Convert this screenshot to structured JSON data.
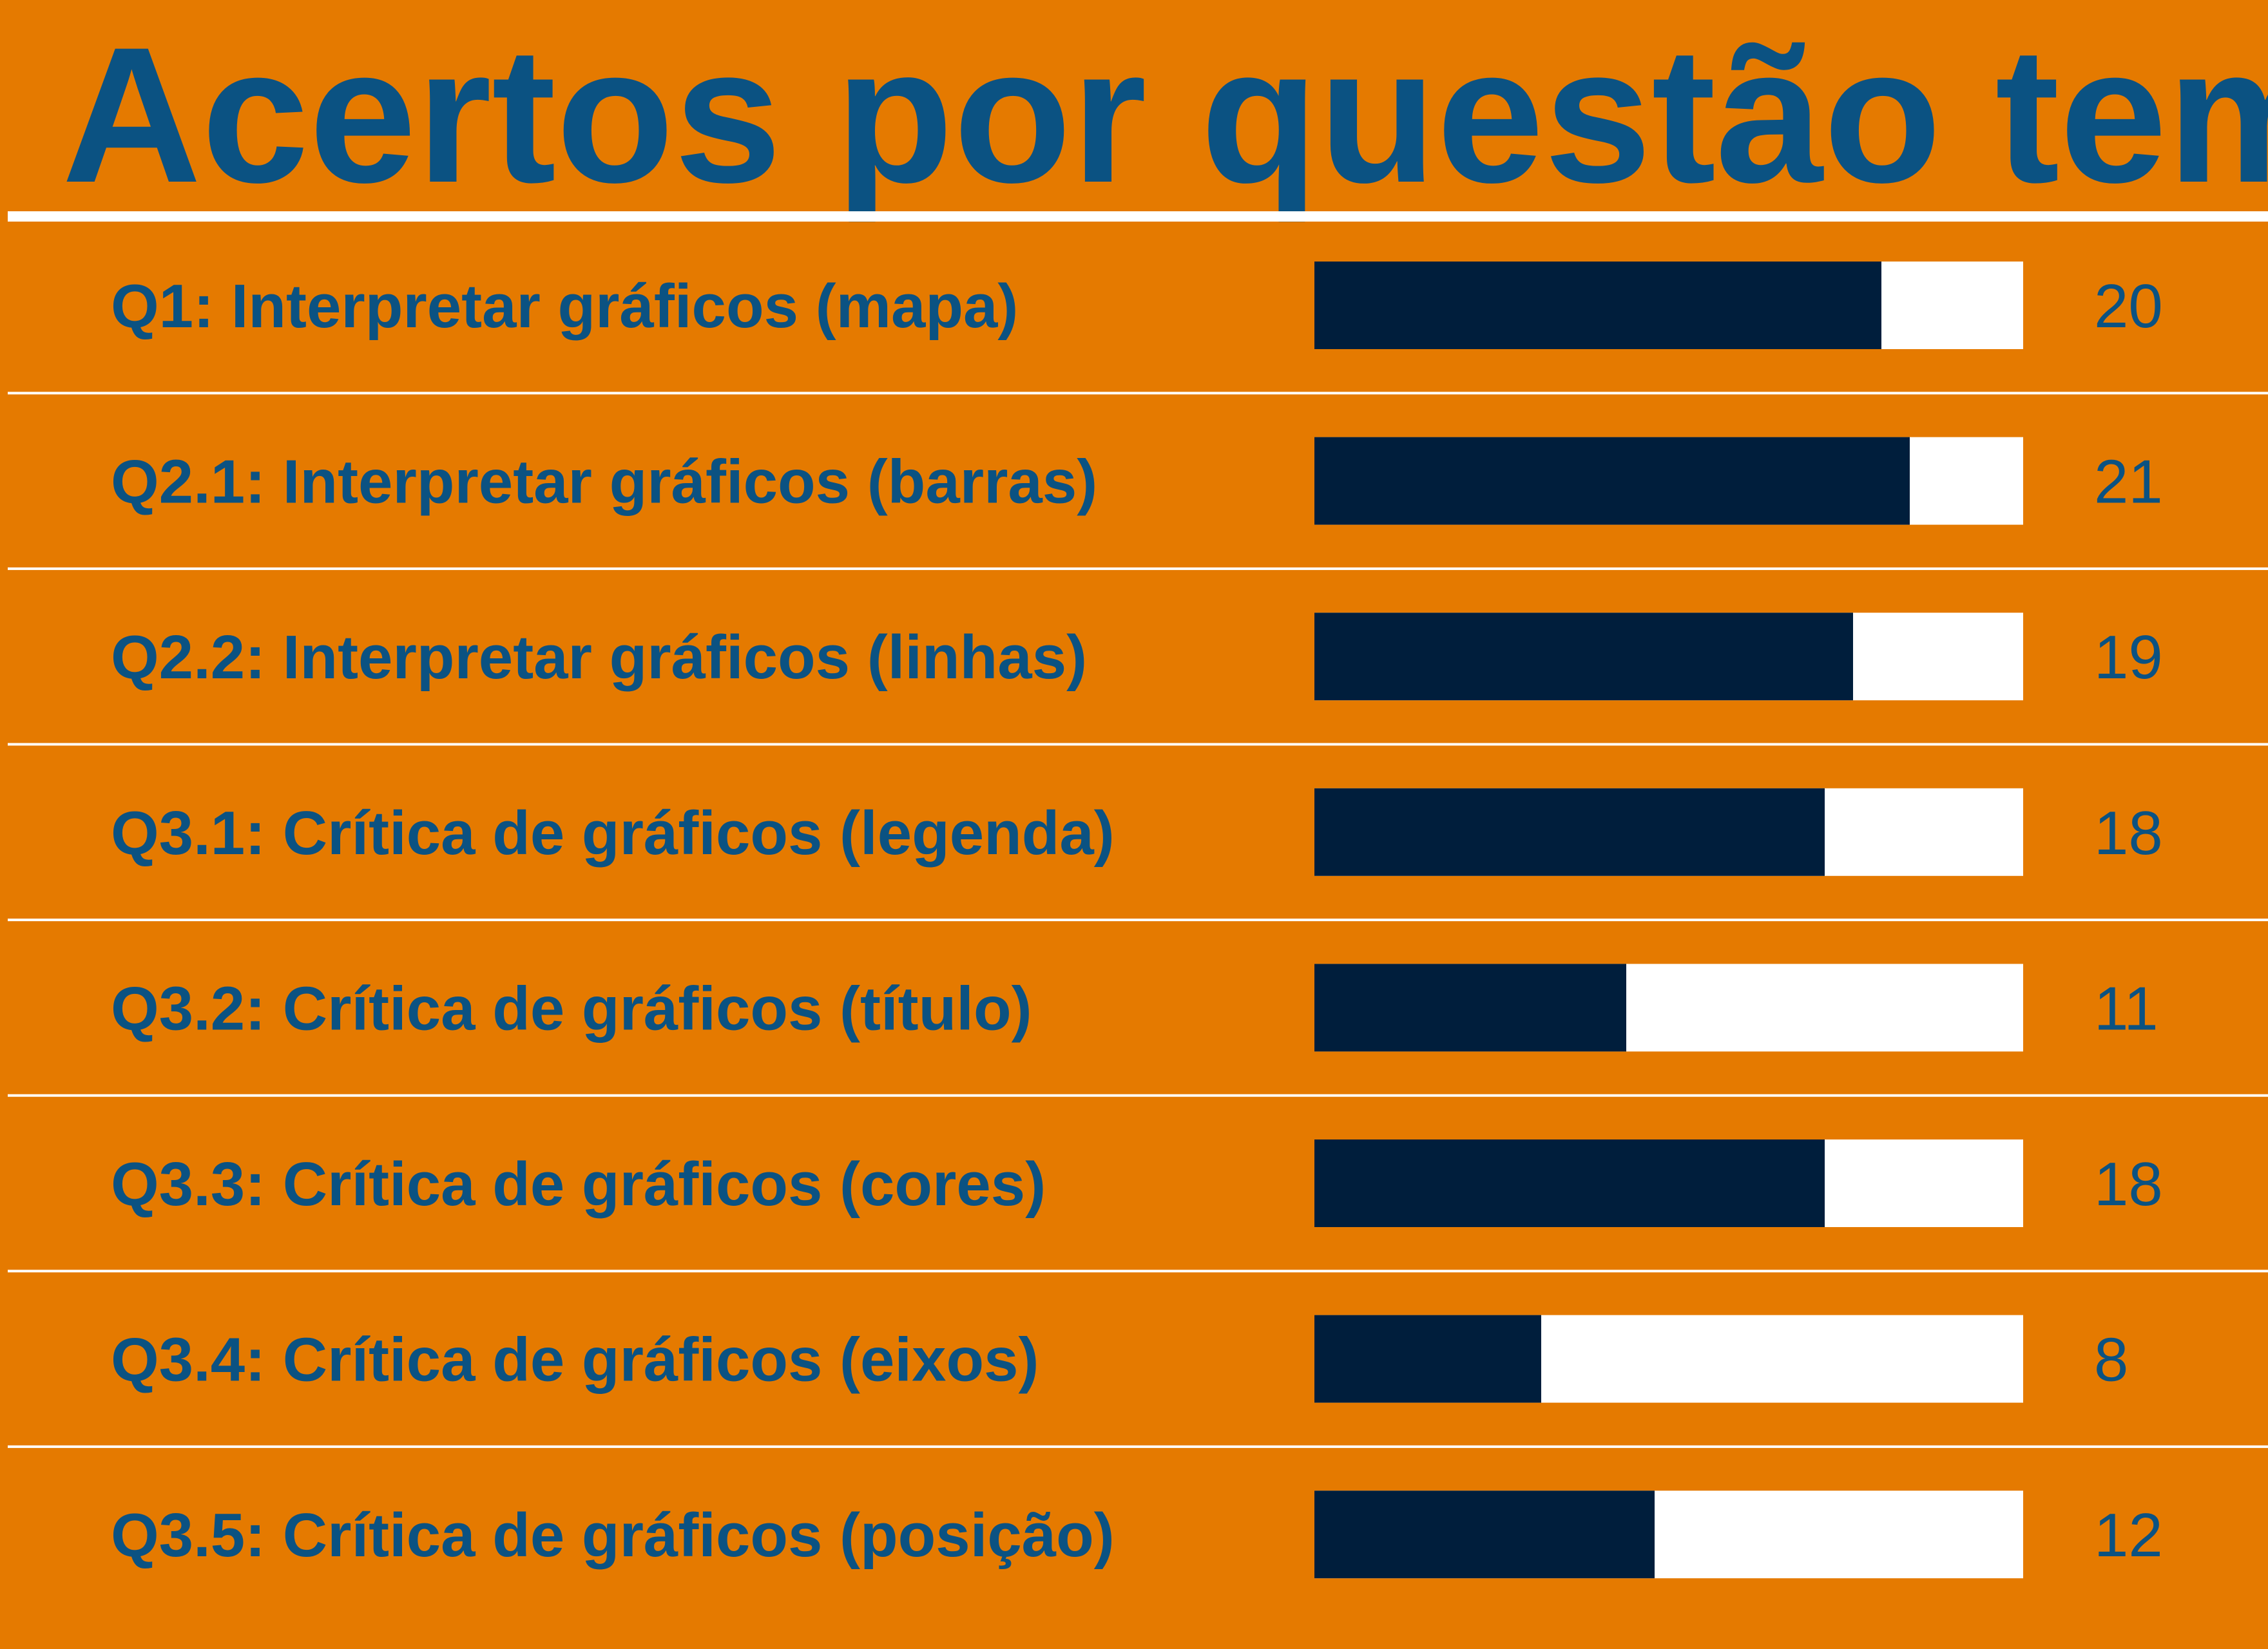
{
  "colors": {
    "background": "#E57A00",
    "text": "#0B5282",
    "bar_fill": "#001E3C",
    "bar_track": "#FFFFFF",
    "separator": "#FFFFFF"
  },
  "chart_data": {
    "type": "bar",
    "orientation": "horizontal",
    "title": "Acertos por questão temática",
    "categories": [
      "Q1: Interpretar gráficos (mapa)",
      "Q2.1: Interpretar gráficos (barras)",
      "Q2.2: Interpretar gráficos (linhas)",
      "Q3.1: Crítica de gráficos (legenda)",
      "Q3.2: Crítica de gráficos (título)",
      "Q3.3: Crítica de gráficos (cores)",
      "Q3.4: Crítica de gráficos (eixos)",
      "Q3.5: Crítica de gráficos (posição)"
    ],
    "values": [
      20,
      21,
      19,
      18,
      11,
      18,
      8,
      12
    ],
    "value_labels": [
      "20",
      "21",
      "19",
      "18",
      "11",
      "18",
      "8",
      "12"
    ],
    "xlim": [
      0,
      25
    ],
    "grid": false,
    "legend": "none"
  }
}
